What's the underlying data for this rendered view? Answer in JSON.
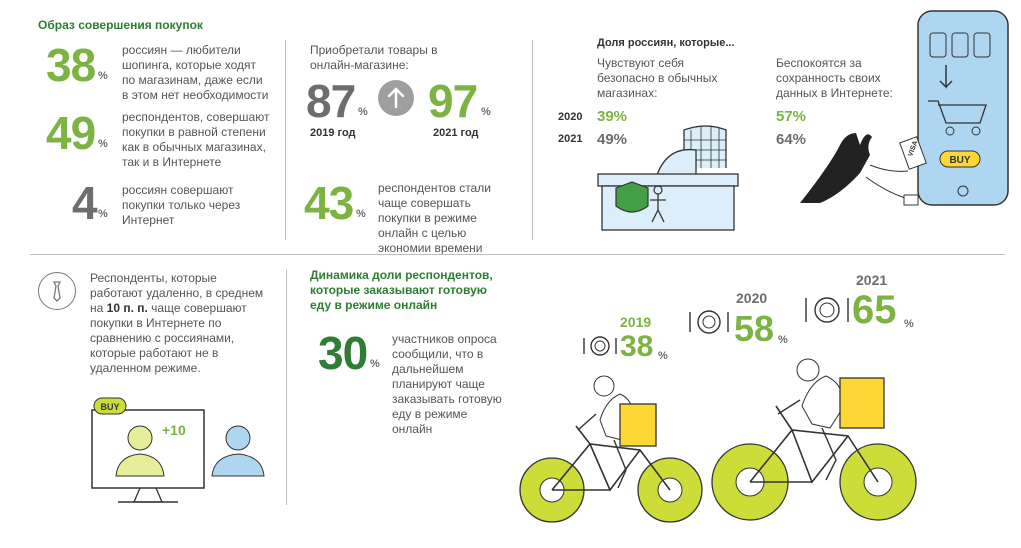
{
  "title": "Образ совершения покупок",
  "stats_left": [
    {
      "value": "38",
      "unit": "%",
      "text": "россиян — любители шопинга, которые ходят по магазинам, даже если в этом нет необходимости"
    },
    {
      "value": "49",
      "unit": "%",
      "text": "респондентов, совершают покупки в равной степени как в обычных магазинах, так и в Интернете"
    },
    {
      "value": "4",
      "unit": "%",
      "text": "россиян совершают покупки только через Интернет"
    }
  ],
  "online": {
    "heading": "Приобретали товары в онлайн-магазине:",
    "value_2019": "87",
    "label_2019": "2019 год",
    "value_2021": "97",
    "label_2021": "2021 год",
    "unit": "%",
    "stat_value": "43",
    "stat_text": "респондентов стали чаще совершать покупки в режиме онлайн с целью экономии времени"
  },
  "share": {
    "heading": "Доля россиян, которые...",
    "col1_label": "Чувствуют себя безопасно в обычных магазинах:",
    "col2_label": "Беспокоятся за сохранность своих данных в Интернете:",
    "rows": [
      {
        "year": "2020",
        "v1": "39%",
        "v2": "57%"
      },
      {
        "year": "2021",
        "v1": "49%",
        "v2": "64%"
      }
    ]
  },
  "remote": {
    "text_a": "Респонденты, которые работают удаленно, в среднем на ",
    "bold": "10 п. п.",
    "text_b": " чаще совершают покупки в Интернете по сравнению с россиянами, которые работают не в удаленном режиме.",
    "badge": "+10",
    "buy": "BUY"
  },
  "food": {
    "heading": "Динамика доли респондентов, которые заказывают готовую еду в режиме онлайн",
    "stat_value": "30",
    "stat_text": "участников опроса сообщили, что в дальнейшем планируют чаще заказывать готовую еду в режиме онлайн",
    "years": [
      {
        "year": "2019",
        "value": "38"
      },
      {
        "year": "2020",
        "value": "58"
      },
      {
        "year": "2021",
        "value": "65"
      }
    ],
    "unit": "%"
  },
  "phone": {
    "buy": "BUY",
    "card": "VISA"
  },
  "colors": {
    "green": "#7cb342",
    "dark_green": "#2e7d32",
    "grey": "#6d6d6d",
    "lime": "#cddc39",
    "yellow": "#fdd835",
    "blue": "#aed6f1"
  }
}
